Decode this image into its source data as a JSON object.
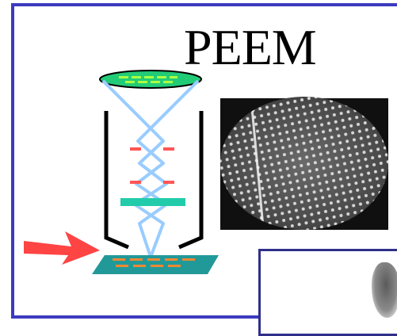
{
  "slide": {
    "title": "PEEM"
  },
  "colors": {
    "frame": "#3b3bbf",
    "screen_fill": "#22cc77",
    "screen_pattern": "#aaff44",
    "beam": "#99ccff",
    "column_walls": "#000000",
    "lens_marks": "#ff5555",
    "aperture": "#22ccaa",
    "sample_plate": "#229999",
    "sample_pattern": "#ee8833",
    "arrow": "#ff4444",
    "inset_border": "#2f2f8a"
  },
  "icons": {
    "incident_arrow": "arrow-right-icon",
    "peem_image": "electron-micrograph-image",
    "inset_image": "micrograph-inset-image"
  }
}
